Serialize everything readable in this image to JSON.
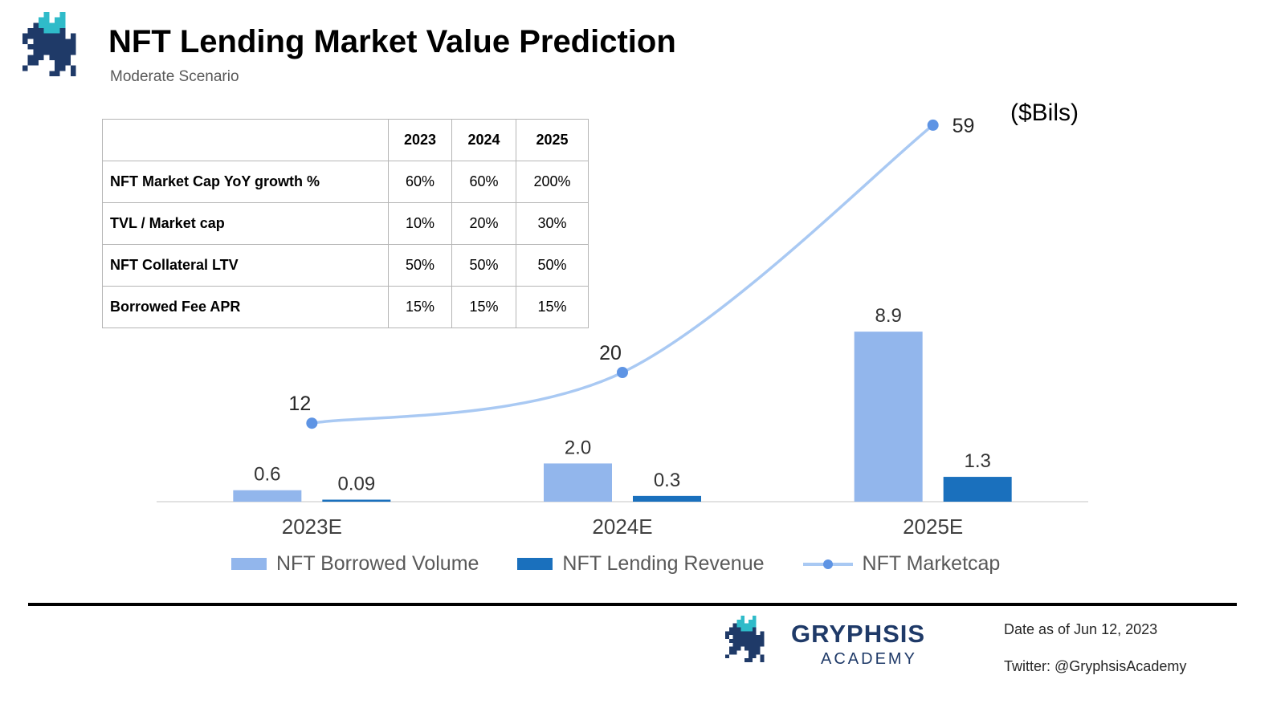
{
  "header": {
    "title": "NFT Lending Market Value Prediction",
    "subtitle": "Moderate Scenario"
  },
  "assumptions_table": {
    "columns": [
      "2023",
      "2024",
      "2025"
    ],
    "rows": [
      {
        "label": "NFT Market Cap YoY growth %",
        "values": [
          "60%",
          "60%",
          "200%"
        ]
      },
      {
        "label": "TVL / Market cap",
        "values": [
          "10%",
          "20%",
          "30%"
        ]
      },
      {
        "label": "NFT Collateral LTV",
        "values": [
          "50%",
          "50%",
          "50%"
        ]
      },
      {
        "label": "Borrowed Fee APR",
        "values": [
          "15%",
          "15%",
          "15%"
        ]
      }
    ]
  },
  "chart_data": {
    "type": "combo-bar-line",
    "title": "NFT Lending Market Value Prediction",
    "unit_label": "($Bils)",
    "categories": [
      "2023E",
      "2024E",
      "2025E"
    ],
    "series": [
      {
        "name": "NFT Borrowed Volume",
        "kind": "bar",
        "color": "#92B6EC",
        "values": [
          0.6,
          2.0,
          8.9
        ],
        "labels": [
          "0.6",
          "2.0",
          "8.9"
        ]
      },
      {
        "name": "NFT Lending Revenue",
        "kind": "bar",
        "color": "#1A70BD",
        "values": [
          0.09,
          0.3,
          1.3
        ],
        "labels": [
          "0.09",
          "0.3",
          "1.3"
        ]
      },
      {
        "name": "NFT Marketcap",
        "kind": "line",
        "color": "#A9C9F3",
        "marker_color": "#5E94E4",
        "values": [
          12,
          20,
          59
        ],
        "labels": [
          "12",
          "20",
          "59"
        ]
      }
    ],
    "xlabel": "",
    "ylabel": "",
    "bar_ylim": [
      0,
      10
    ],
    "line_ylim": [
      0,
      60
    ],
    "grid": false,
    "legend_position": "bottom"
  },
  "footer": {
    "brand_name": "GRYPHSIS",
    "brand_subtitle": "ACADEMY",
    "date_note": "Date as of Jun 12, 2023",
    "twitter_note": "Twitter: @GryphsisAcademy"
  }
}
